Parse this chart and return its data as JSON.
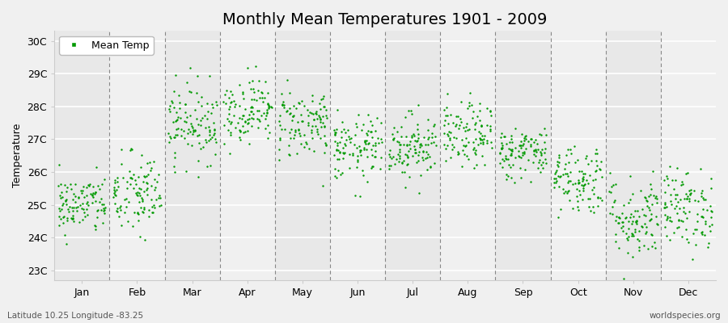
{
  "title": "Monthly Mean Temperatures 1901 - 2009",
  "ylabel": "Temperature",
  "xlabel_bottom_left": "Latitude 10.25 Longitude -83.25",
  "xlabel_bottom_right": "worldspecies.org",
  "ytick_labels": [
    "23C",
    "24C",
    "25C",
    "26C",
    "27C",
    "28C",
    "29C",
    "30C"
  ],
  "ytick_values": [
    23,
    24,
    25,
    26,
    27,
    28,
    29,
    30
  ],
  "ylim": [
    22.7,
    30.3
  ],
  "months": [
    "Jan",
    "Feb",
    "Mar",
    "Apr",
    "May",
    "Jun",
    "Jul",
    "Aug",
    "Sep",
    "Oct",
    "Nov",
    "Dec"
  ],
  "month_centers": [
    1,
    2,
    3,
    4,
    5,
    6,
    7,
    8,
    9,
    10,
    11,
    12
  ],
  "dot_color": "#009900",
  "dot_size": 3,
  "bg_light": "#f0f0f0",
  "bg_dark": "#e8e8e8",
  "plot_bg": "#f0f0f0",
  "grid_color": "#888888",
  "title_fontsize": 14,
  "label_fontsize": 9,
  "tick_fontsize": 9,
  "legend_label": "Mean Temp",
  "seed": 42,
  "n_years": 109,
  "mean_temps": [
    25.0,
    25.3,
    27.5,
    27.9,
    27.5,
    26.7,
    26.8,
    27.1,
    26.6,
    25.8,
    24.6,
    24.9
  ],
  "std_temps": [
    0.45,
    0.65,
    0.6,
    0.5,
    0.55,
    0.5,
    0.5,
    0.5,
    0.4,
    0.55,
    0.65,
    0.6
  ]
}
